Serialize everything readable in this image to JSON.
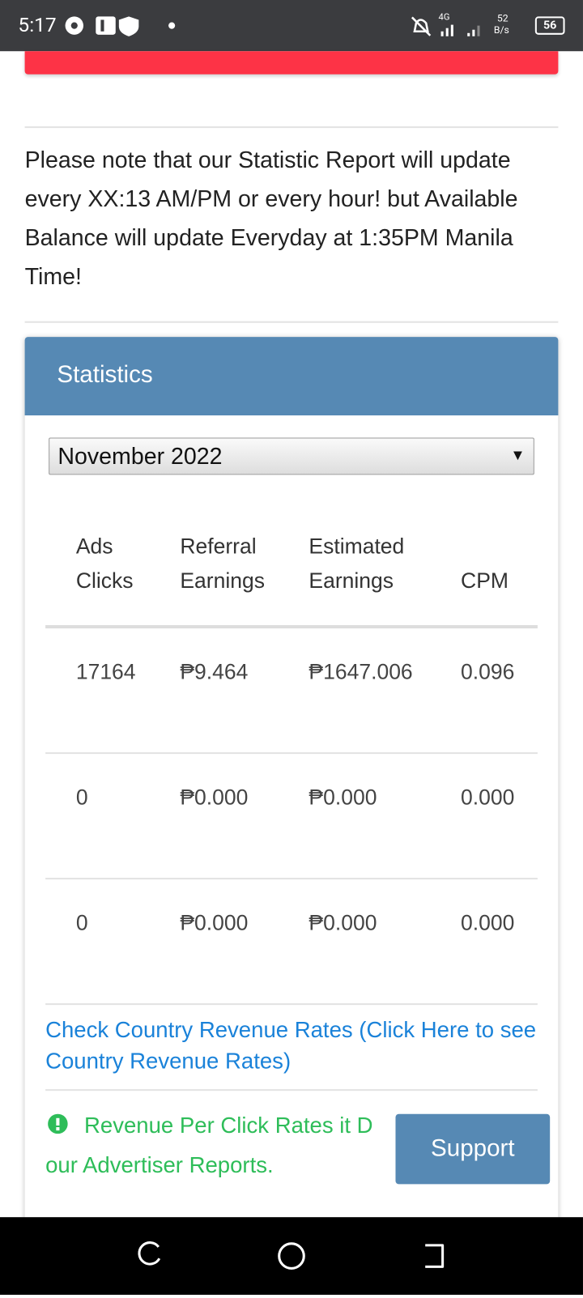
{
  "status_bar": {
    "time": "5:17",
    "network": "4G",
    "speed_value": "52",
    "speed_unit": "B/s",
    "battery": "56"
  },
  "notice": "Please note that our Statistic Report will update every XX:13 AM/PM or every hour! but Available Balance will update Everyday at 1:35PM Manila Time!",
  "card": {
    "title": "Statistics",
    "month_select": "November 2022"
  },
  "table": {
    "headers": [
      "Ads Clicks",
      "Referral Earnings",
      "Estimated Earnings",
      "CPM"
    ],
    "rows": [
      [
        "17164",
        "₱9.464",
        "₱1647.006",
        "0.096"
      ],
      [
        "0",
        "₱0.000",
        "₱0.000",
        "0.000"
      ],
      [
        "0",
        "₱0.000",
        "₱0.000",
        "0.000"
      ]
    ]
  },
  "link": "Check Country Revenue Rates (Click Here to see Country Revenue Rates)",
  "alert": {
    "line1": "Revenue Per Click Rates it D",
    "line2": "our Advertiser Reports."
  },
  "support_button": "Support"
}
